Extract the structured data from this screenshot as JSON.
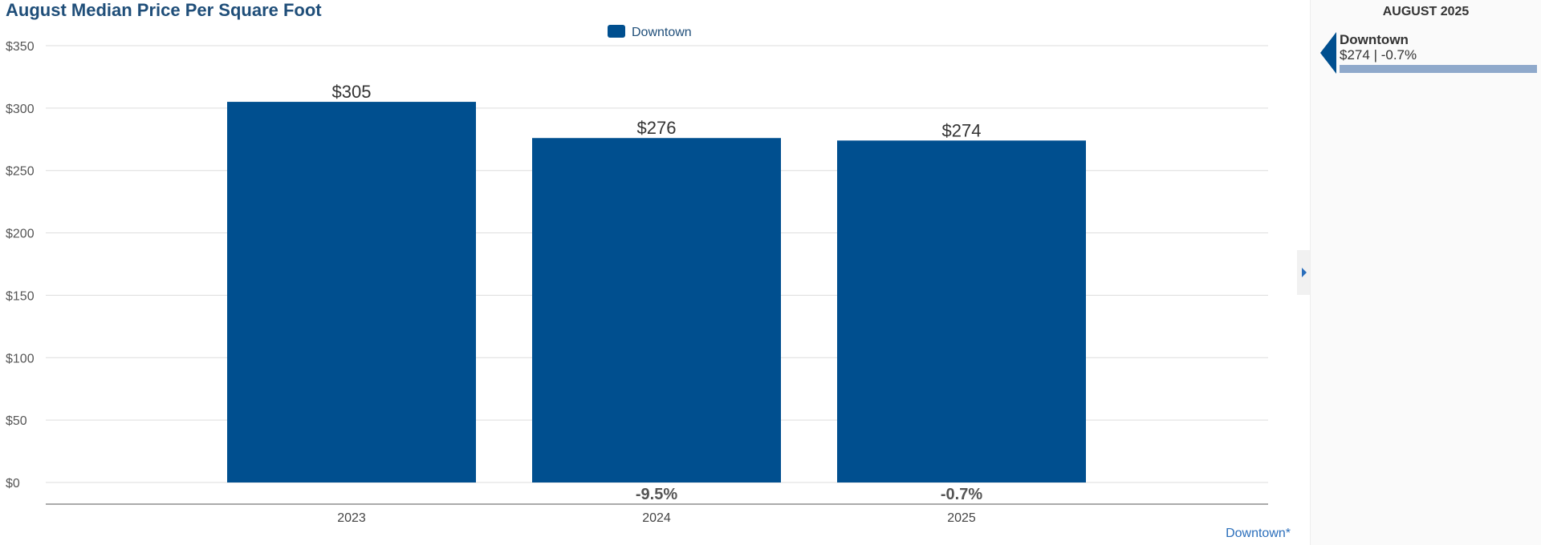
{
  "chart_data": {
    "type": "bar",
    "title": "August Median Price Per Square Foot",
    "categories": [
      "2023",
      "2024",
      "2025"
    ],
    "series": [
      {
        "name": "Downtown",
        "color": "#004f8f",
        "values": [
          305,
          276,
          274
        ],
        "value_labels": [
          "$305",
          "$276",
          "$274"
        ],
        "change_labels": [
          "",
          "-9.5%",
          "-0.7%"
        ]
      }
    ],
    "ylim": [
      0,
      350
    ],
    "yticks": [
      0,
      50,
      100,
      150,
      200,
      250,
      300,
      350
    ],
    "ytick_labels": [
      "$0",
      "$50",
      "$100",
      "$150",
      "$200",
      "$250",
      "$300",
      "$350"
    ],
    "grid": true,
    "legend": "top-center"
  },
  "footer_link": "Downtown*",
  "side_panel": {
    "month_label": "AUGUST 2025",
    "item": {
      "name": "Downtown",
      "value": "$274",
      "separator": "|",
      "change": "-0.7%",
      "bar_fill": 1.0,
      "color": "#8fa9cb"
    }
  }
}
